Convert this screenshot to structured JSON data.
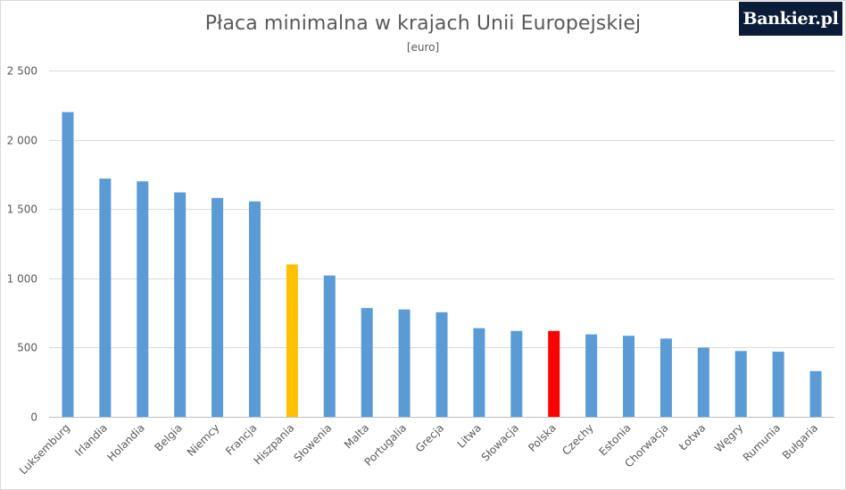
{
  "title": "Płaca minimalna w krajach Unii Europejskiej",
  "subtitle": "[euro]",
  "logo_text": "Bankier.pl",
  "chart_data": {
    "type": "bar",
    "title": "Płaca minimalna w krajach Unii Europejskiej",
    "subtitle": "[euro]",
    "categories": [
      "Luksemburg",
      "Irlandia",
      "Holandia",
      "Belgia",
      "Niemcy",
      "Francja",
      "Hiszpania",
      "Słowenia",
      "Malta",
      "Portugalia",
      "Grecja",
      "Litwa",
      "Słowacja",
      "Polska",
      "Czechy",
      "Estonia",
      "Chorwacja",
      "Łotwa",
      "Węgry",
      "Rumunia",
      "Bułgaria"
    ],
    "values": [
      2200,
      1720,
      1700,
      1620,
      1580,
      1555,
      1100,
      1020,
      785,
      775,
      755,
      640,
      620,
      620,
      595,
      585,
      565,
      500,
      475,
      470,
      330
    ],
    "colors": [
      "#5b9bd5",
      "#5b9bd5",
      "#5b9bd5",
      "#5b9bd5",
      "#5b9bd5",
      "#5b9bd5",
      "#ffc000",
      "#5b9bd5",
      "#5b9bd5",
      "#5b9bd5",
      "#5b9bd5",
      "#5b9bd5",
      "#5b9bd5",
      "#ff0000",
      "#5b9bd5",
      "#5b9bd5",
      "#5b9bd5",
      "#5b9bd5",
      "#5b9bd5",
      "#5b9bd5",
      "#5b9bd5"
    ],
    "yticks": [
      0,
      500,
      1000,
      1500,
      2000,
      2500
    ],
    "ytick_labels": [
      "0",
      "500",
      "1 000",
      "1 500",
      "2 000",
      "2 500"
    ],
    "ylim": [
      0,
      2500
    ],
    "grid": true,
    "legend": "none"
  }
}
